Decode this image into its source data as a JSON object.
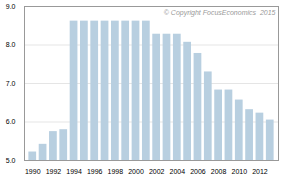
{
  "chart_data": {
    "type": "bar",
    "x": [
      1990,
      1991,
      1992,
      1993,
      1994,
      1995,
      1996,
      1997,
      1998,
      1999,
      2000,
      2001,
      2002,
      2003,
      2004,
      2005,
      2006,
      2007,
      2008,
      2009,
      2010,
      2011,
      2012,
      2013
    ],
    "values": [
      5.22,
      5.42,
      5.75,
      5.8,
      8.62,
      8.62,
      8.62,
      8.62,
      8.62,
      8.62,
      8.62,
      8.62,
      8.28,
      8.28,
      8.28,
      8.07,
      7.78,
      7.3,
      6.83,
      6.83,
      6.57,
      6.32,
      6.23,
      6.05
    ],
    "color": "#b8cfe0",
    "xlim": [
      1989.2,
      2013.8
    ],
    "xticks": [
      1990,
      1992,
      1994,
      1996,
      1998,
      2000,
      2002,
      2004,
      2006,
      2008,
      2010,
      2012
    ],
    "ylim": [
      5.0,
      9.0
    ],
    "yticks": [
      {
        "value": 5.0,
        "label": "5.0"
      },
      {
        "value": 6.0,
        "label": "6.0"
      },
      {
        "value": 7.0,
        "label": "7.0"
      },
      {
        "value": 8.0,
        "label": "8.0"
      },
      {
        "value": 9.0,
        "label": "9.0"
      }
    ],
    "grid": true,
    "annotation": "© Copyright FocusEconomics  2015"
  }
}
